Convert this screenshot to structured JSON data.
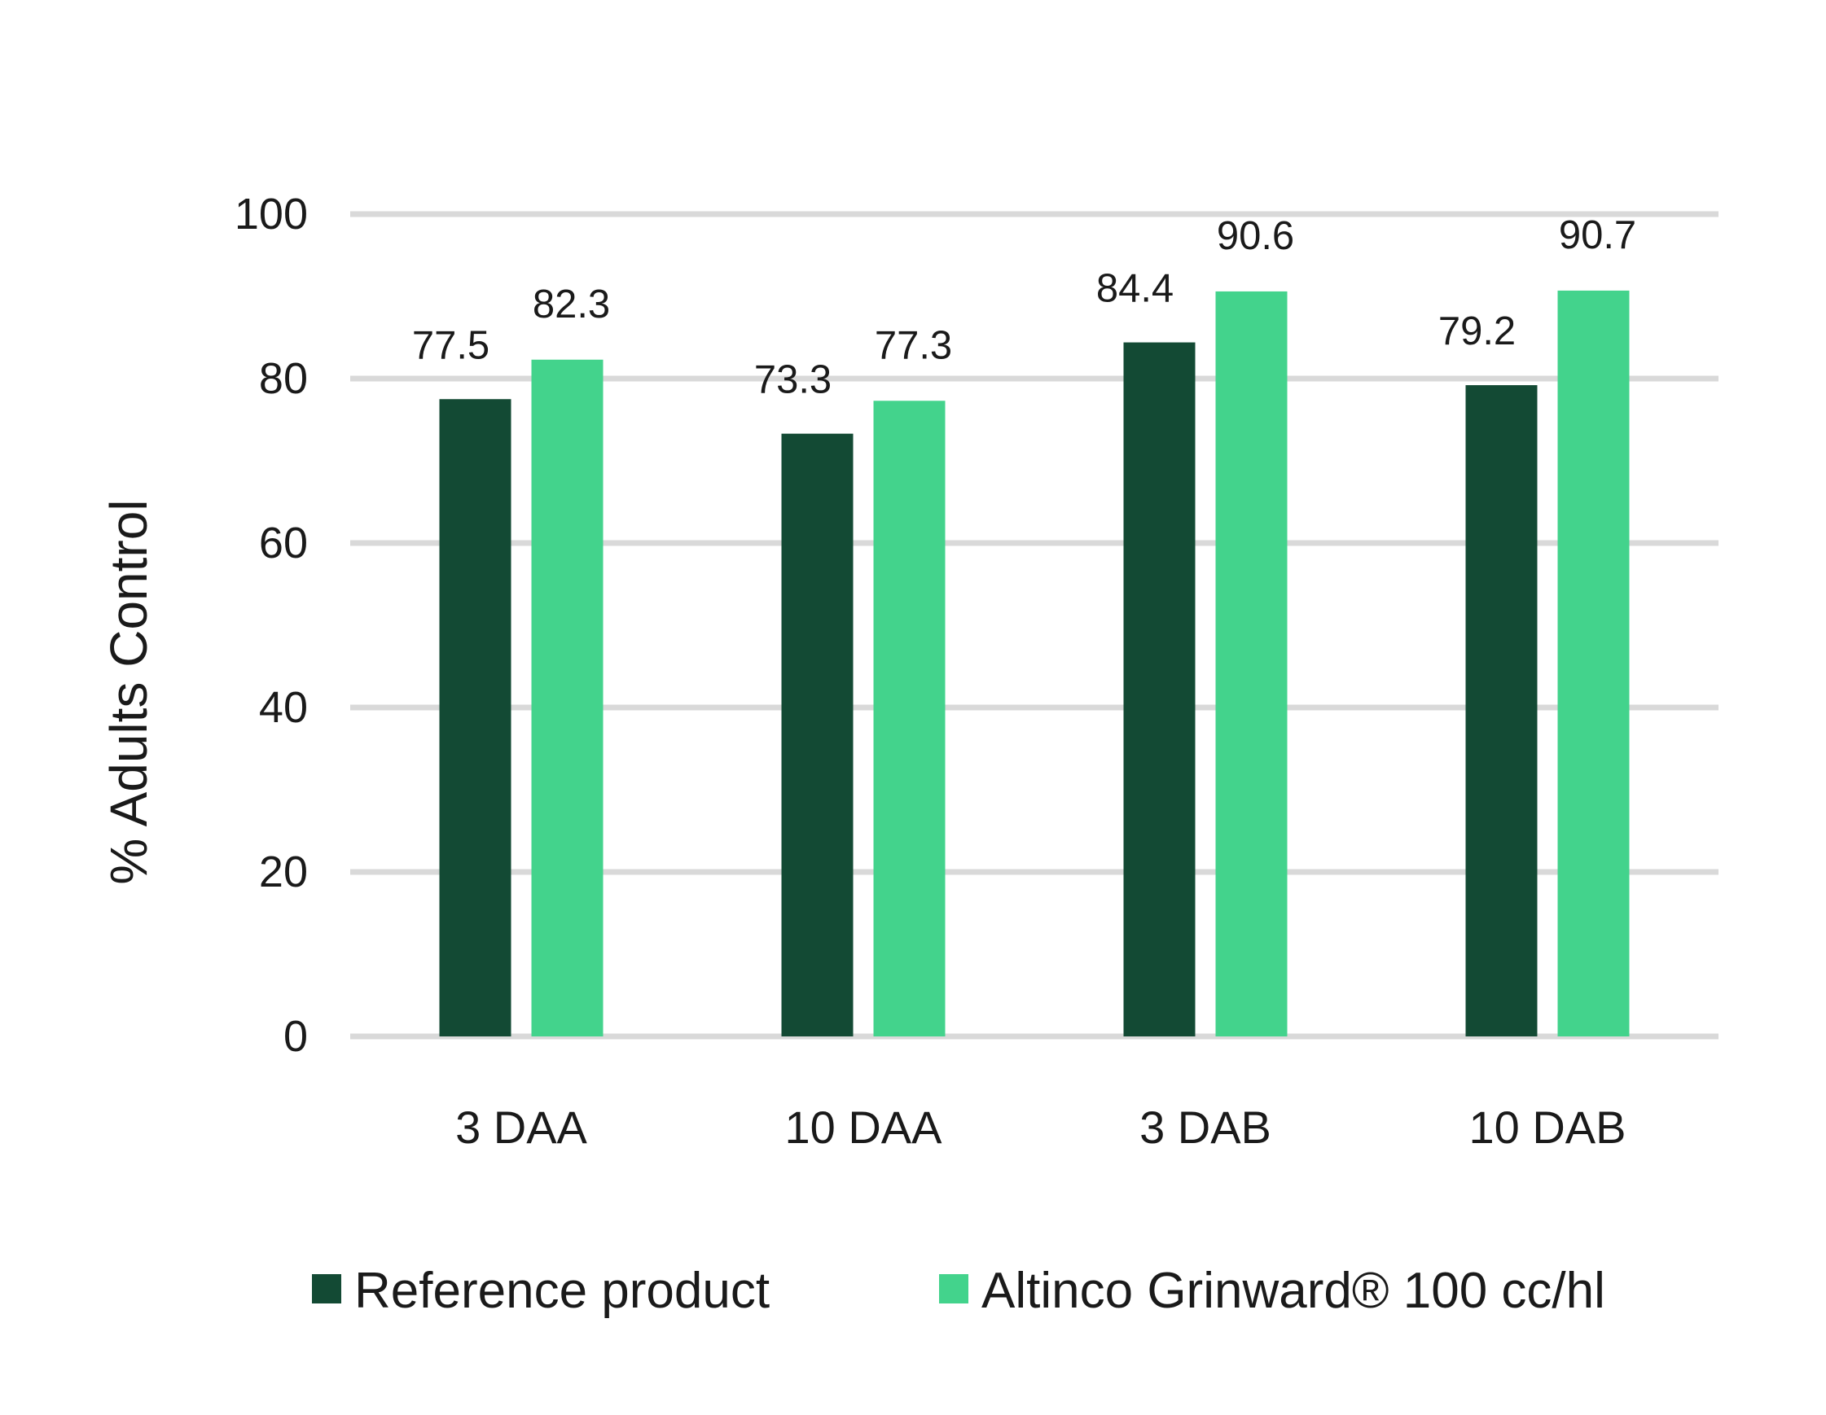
{
  "chart_data": {
    "type": "bar",
    "categories": [
      "3 DAA",
      "10 DAA",
      "3 DAB",
      "10 DAB"
    ],
    "series": [
      {
        "name": "Reference product",
        "values": [
          77.5,
          73.3,
          84.4,
          79.2
        ],
        "color": "#134a34"
      },
      {
        "name": "Altinco Grinward® 100 cc/hl",
        "values": [
          82.3,
          77.3,
          90.6,
          90.7
        ],
        "color": "#43d38c"
      }
    ],
    "title": "",
    "xlabel": "",
    "ylabel": "% Adults Control",
    "ylim": [
      0,
      100
    ],
    "yticks": [
      0,
      20,
      40,
      60,
      80,
      100
    ],
    "grid": true,
    "legend_position": "bottom"
  }
}
